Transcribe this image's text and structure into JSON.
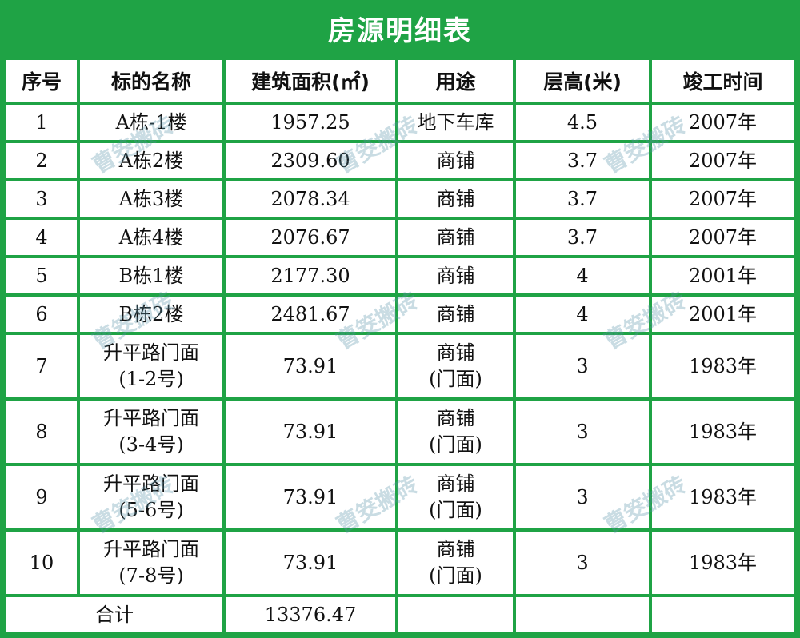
{
  "title": "房源明细表",
  "columns": [
    "序号",
    "标的名称",
    "建筑面积(㎡)",
    "用途",
    "层高(米)",
    "竣工时间"
  ],
  "rows": [
    {
      "no": "1",
      "name": [
        "A栋-1楼"
      ],
      "area": "1957.25",
      "use": [
        "地下车库"
      ],
      "height": "4.5",
      "year": "2007年"
    },
    {
      "no": "2",
      "name": [
        "A栋2楼"
      ],
      "area": "2309.60",
      "use": [
        "商铺"
      ],
      "height": "3.7",
      "year": "2007年"
    },
    {
      "no": "3",
      "name": [
        "A栋3楼"
      ],
      "area": "2078.34",
      "use": [
        "商铺"
      ],
      "height": "3.7",
      "year": "2007年"
    },
    {
      "no": "4",
      "name": [
        "A栋4楼"
      ],
      "area": "2076.67",
      "use": [
        "商铺"
      ],
      "height": "3.7",
      "year": "2007年"
    },
    {
      "no": "5",
      "name": [
        "B栋1楼"
      ],
      "area": "2177.30",
      "use": [
        "商铺"
      ],
      "height": "4",
      "year": "2001年"
    },
    {
      "no": "6",
      "name": [
        "B栋2楼"
      ],
      "area": "2481.67",
      "use": [
        "商铺"
      ],
      "height": "4",
      "year": "2001年"
    },
    {
      "no": "7",
      "name": [
        "升平路门面",
        "(1-2号)"
      ],
      "area": "73.91",
      "use": [
        "商铺",
        "(门面)"
      ],
      "height": "3",
      "year": "1983年"
    },
    {
      "no": "8",
      "name": [
        "升平路门面",
        "(3-4号)"
      ],
      "area": "73.91",
      "use": [
        "商铺",
        "(门面)"
      ],
      "height": "3",
      "year": "1983年"
    },
    {
      "no": "9",
      "name": [
        "升平路门面",
        "(5-6号)"
      ],
      "area": "73.91",
      "use": [
        "商铺",
        "(门面)"
      ],
      "height": "3",
      "year": "1983年"
    },
    {
      "no": "10",
      "name": [
        "升平路门面",
        "(7-8号)"
      ],
      "area": "73.91",
      "use": [
        "商铺",
        "(门面)"
      ],
      "height": "3",
      "year": "1983年"
    }
  ],
  "total": {
    "label": "合计",
    "area": "13376.47"
  },
  "watermark": "曹筊搬砖",
  "colors": {
    "grid": "#1fa345",
    "cell": "#ffffff",
    "title_text": "#ffffff"
  }
}
